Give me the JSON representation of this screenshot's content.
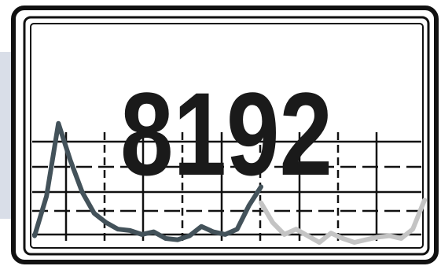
{
  "display": {
    "readout": "8192"
  },
  "colors": {
    "frame": "#111111",
    "screen_background": "#ffffff",
    "side_panel": "#d9dee8",
    "grid": "#111111",
    "trace_active": "#43525a",
    "trace_faded": "#c4c4c4",
    "digits": "#1a1a1a"
  },
  "waveform": {
    "active_trace": [
      0.05,
      0.35,
      0.9,
      0.62,
      0.38,
      0.22,
      0.15,
      0.1,
      0.09,
      0.06,
      0.08,
      0.03,
      0.02,
      0.05,
      0.12,
      0.08,
      0.06,
      0.1,
      0.28,
      0.42
    ],
    "faded_trace": [
      0.3,
      0.15,
      0.06,
      0.1,
      0.05,
      0.0,
      0.07,
      0.03,
      0.0,
      0.02,
      0.04,
      0.05,
      0.03,
      0.1,
      0.32
    ]
  }
}
